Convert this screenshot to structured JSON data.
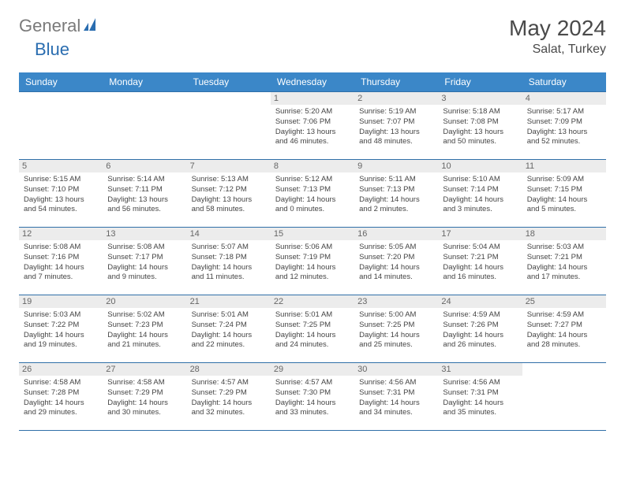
{
  "brand": {
    "part1": "General",
    "part2": "Blue"
  },
  "title": "May 2024",
  "location": "Salat, Turkey",
  "day_header_bg": "#3b87c8",
  "grid_line_color": "#2f6fa8",
  "daynum_bg": "#ececec",
  "days": [
    "Sunday",
    "Monday",
    "Tuesday",
    "Wednesday",
    "Thursday",
    "Friday",
    "Saturday"
  ],
  "weeks": [
    [
      {
        "n": "",
        "sr": "",
        "ss": "",
        "dl": ""
      },
      {
        "n": "",
        "sr": "",
        "ss": "",
        "dl": ""
      },
      {
        "n": "",
        "sr": "",
        "ss": "",
        "dl": ""
      },
      {
        "n": "1",
        "sr": "5:20 AM",
        "ss": "7:06 PM",
        "dl": "13 hours and 46 minutes."
      },
      {
        "n": "2",
        "sr": "5:19 AM",
        "ss": "7:07 PM",
        "dl": "13 hours and 48 minutes."
      },
      {
        "n": "3",
        "sr": "5:18 AM",
        "ss": "7:08 PM",
        "dl": "13 hours and 50 minutes."
      },
      {
        "n": "4",
        "sr": "5:17 AM",
        "ss": "7:09 PM",
        "dl": "13 hours and 52 minutes."
      }
    ],
    [
      {
        "n": "5",
        "sr": "5:15 AM",
        "ss": "7:10 PM",
        "dl": "13 hours and 54 minutes."
      },
      {
        "n": "6",
        "sr": "5:14 AM",
        "ss": "7:11 PM",
        "dl": "13 hours and 56 minutes."
      },
      {
        "n": "7",
        "sr": "5:13 AM",
        "ss": "7:12 PM",
        "dl": "13 hours and 58 minutes."
      },
      {
        "n": "8",
        "sr": "5:12 AM",
        "ss": "7:13 PM",
        "dl": "14 hours and 0 minutes."
      },
      {
        "n": "9",
        "sr": "5:11 AM",
        "ss": "7:13 PM",
        "dl": "14 hours and 2 minutes."
      },
      {
        "n": "10",
        "sr": "5:10 AM",
        "ss": "7:14 PM",
        "dl": "14 hours and 3 minutes."
      },
      {
        "n": "11",
        "sr": "5:09 AM",
        "ss": "7:15 PM",
        "dl": "14 hours and 5 minutes."
      }
    ],
    [
      {
        "n": "12",
        "sr": "5:08 AM",
        "ss": "7:16 PM",
        "dl": "14 hours and 7 minutes."
      },
      {
        "n": "13",
        "sr": "5:08 AM",
        "ss": "7:17 PM",
        "dl": "14 hours and 9 minutes."
      },
      {
        "n": "14",
        "sr": "5:07 AM",
        "ss": "7:18 PM",
        "dl": "14 hours and 11 minutes."
      },
      {
        "n": "15",
        "sr": "5:06 AM",
        "ss": "7:19 PM",
        "dl": "14 hours and 12 minutes."
      },
      {
        "n": "16",
        "sr": "5:05 AM",
        "ss": "7:20 PM",
        "dl": "14 hours and 14 minutes."
      },
      {
        "n": "17",
        "sr": "5:04 AM",
        "ss": "7:21 PM",
        "dl": "14 hours and 16 minutes."
      },
      {
        "n": "18",
        "sr": "5:03 AM",
        "ss": "7:21 PM",
        "dl": "14 hours and 17 minutes."
      }
    ],
    [
      {
        "n": "19",
        "sr": "5:03 AM",
        "ss": "7:22 PM",
        "dl": "14 hours and 19 minutes."
      },
      {
        "n": "20",
        "sr": "5:02 AM",
        "ss": "7:23 PM",
        "dl": "14 hours and 21 minutes."
      },
      {
        "n": "21",
        "sr": "5:01 AM",
        "ss": "7:24 PM",
        "dl": "14 hours and 22 minutes."
      },
      {
        "n": "22",
        "sr": "5:01 AM",
        "ss": "7:25 PM",
        "dl": "14 hours and 24 minutes."
      },
      {
        "n": "23",
        "sr": "5:00 AM",
        "ss": "7:25 PM",
        "dl": "14 hours and 25 minutes."
      },
      {
        "n": "24",
        "sr": "4:59 AM",
        "ss": "7:26 PM",
        "dl": "14 hours and 26 minutes."
      },
      {
        "n": "25",
        "sr": "4:59 AM",
        "ss": "7:27 PM",
        "dl": "14 hours and 28 minutes."
      }
    ],
    [
      {
        "n": "26",
        "sr": "4:58 AM",
        "ss": "7:28 PM",
        "dl": "14 hours and 29 minutes."
      },
      {
        "n": "27",
        "sr": "4:58 AM",
        "ss": "7:29 PM",
        "dl": "14 hours and 30 minutes."
      },
      {
        "n": "28",
        "sr": "4:57 AM",
        "ss": "7:29 PM",
        "dl": "14 hours and 32 minutes."
      },
      {
        "n": "29",
        "sr": "4:57 AM",
        "ss": "7:30 PM",
        "dl": "14 hours and 33 minutes."
      },
      {
        "n": "30",
        "sr": "4:56 AM",
        "ss": "7:31 PM",
        "dl": "14 hours and 34 minutes."
      },
      {
        "n": "31",
        "sr": "4:56 AM",
        "ss": "7:31 PM",
        "dl": "14 hours and 35 minutes."
      },
      {
        "n": "",
        "sr": "",
        "ss": "",
        "dl": ""
      }
    ]
  ],
  "labels": {
    "sunrise": "Sunrise:",
    "sunset": "Sunset:",
    "daylight": "Daylight:"
  }
}
